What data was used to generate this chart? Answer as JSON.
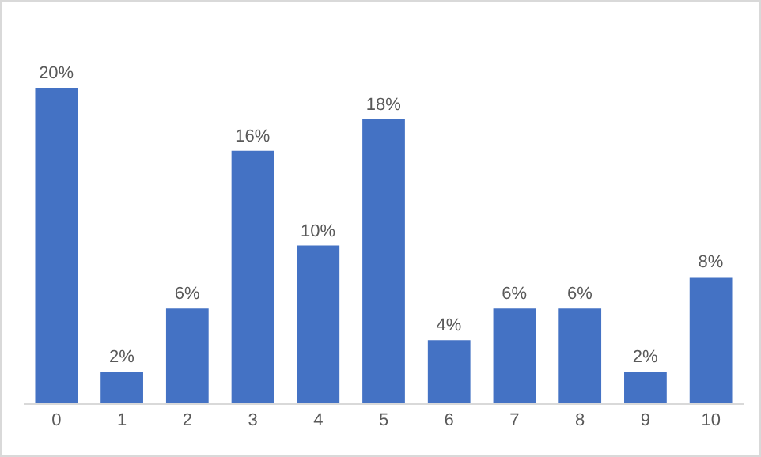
{
  "chart_data": {
    "type": "bar",
    "categories": [
      "0",
      "1",
      "2",
      "3",
      "4",
      "5",
      "6",
      "7",
      "8",
      "9",
      "10"
    ],
    "values": [
      20,
      2,
      6,
      16,
      10,
      18,
      4,
      6,
      6,
      2,
      8
    ],
    "value_labels": [
      "20%",
      "2%",
      "6%",
      "16%",
      "10%",
      "18%",
      "4%",
      "6%",
      "6%",
      "2%",
      "8%"
    ],
    "color": "#4472c4",
    "tick_labels": "x"
  }
}
